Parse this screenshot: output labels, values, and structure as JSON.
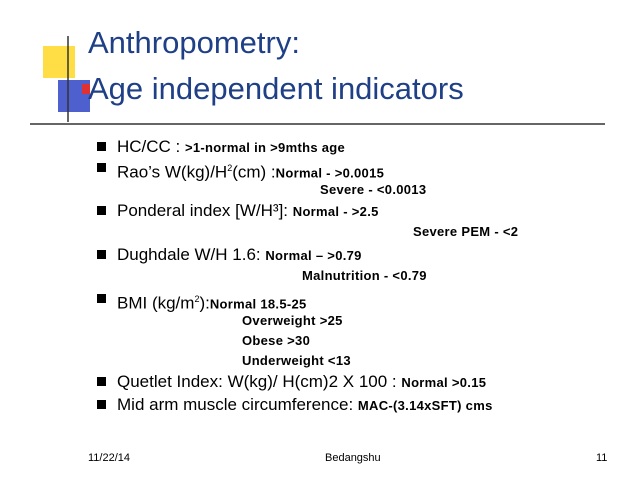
{
  "title": [
    "Anthropometry:",
    "Age independent indicators"
  ],
  "bullets": [
    {
      "text": "HC/CC  : ",
      "detail": ">1-normal in >9mths age"
    },
    {
      "text": "Rao’s W(kg)/H",
      "sup": "2",
      "after": "(cm) :",
      "detail": "Normal  - >0.0015",
      "more": [
        "Severe  - <0.0013"
      ]
    },
    {
      "text": "Ponderal index [W/H³]: ",
      "detail": "Normal - >2.5",
      "more": [
        "Severe PEM - <2"
      ]
    },
    {
      "text": "Dughdale W/H 1.6: ",
      "detail": "Normal – >0.79",
      "more": [
        "Malnutrition - <0.79"
      ]
    },
    {
      "text": "BMI (kg/m",
      "sup": "2",
      "after": "):",
      "detail": "Normal 18.5-25",
      "more": [
        "Overweight >25",
        "Obese >30",
        "Underweight <13"
      ]
    },
    {
      "text": "Quetlet Index: W(kg)/ H(cm)2 X 100 : ",
      "detail": "Normal >0.15"
    },
    {
      "text": "Mid arm muscle circumference: ",
      "detail": "MAC-(3.14xSFT) cms"
    }
  ],
  "footer": {
    "date": "11/22/14",
    "author": "Bedangshu",
    "page": "11"
  }
}
